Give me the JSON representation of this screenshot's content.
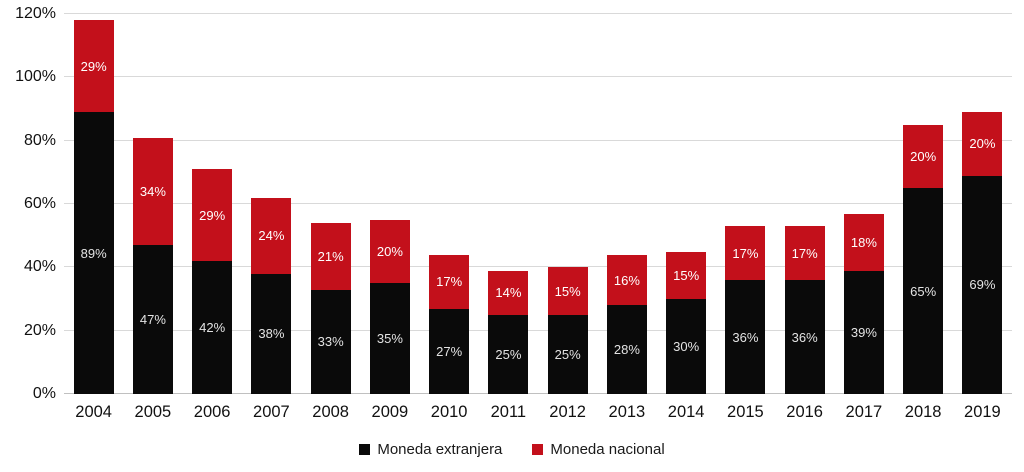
{
  "chart_data": {
    "type": "bar",
    "stacked": true,
    "title": "",
    "xlabel": "",
    "ylabel": "",
    "categories": [
      "2004",
      "2005",
      "2006",
      "2007",
      "2008",
      "2009",
      "2010",
      "2011",
      "2012",
      "2013",
      "2014",
      "2015",
      "2016",
      "2017",
      "2018",
      "2019"
    ],
    "series": [
      {
        "name": "Moneda extranjera",
        "color": "#0a0a0a",
        "label_color": "#e3e3e3",
        "values": [
          89,
          47,
          42,
          38,
          33,
          35,
          27,
          25,
          25,
          28,
          30,
          36,
          36,
          39,
          65,
          69
        ]
      },
      {
        "name": "Moneda nacional",
        "color": "#c3101b",
        "label_color": "#ffffff",
        "values": [
          29,
          34,
          29,
          24,
          21,
          20,
          17,
          14,
          15,
          16,
          15,
          17,
          17,
          18,
          20,
          20
        ]
      }
    ],
    "value_suffix": "%",
    "ylim": [
      0,
      120
    ],
    "y_ticks": [
      "0%",
      "20%",
      "40%",
      "60%",
      "80%",
      "100%",
      "120%"
    ],
    "grid": true,
    "legend_position": "bottom"
  }
}
